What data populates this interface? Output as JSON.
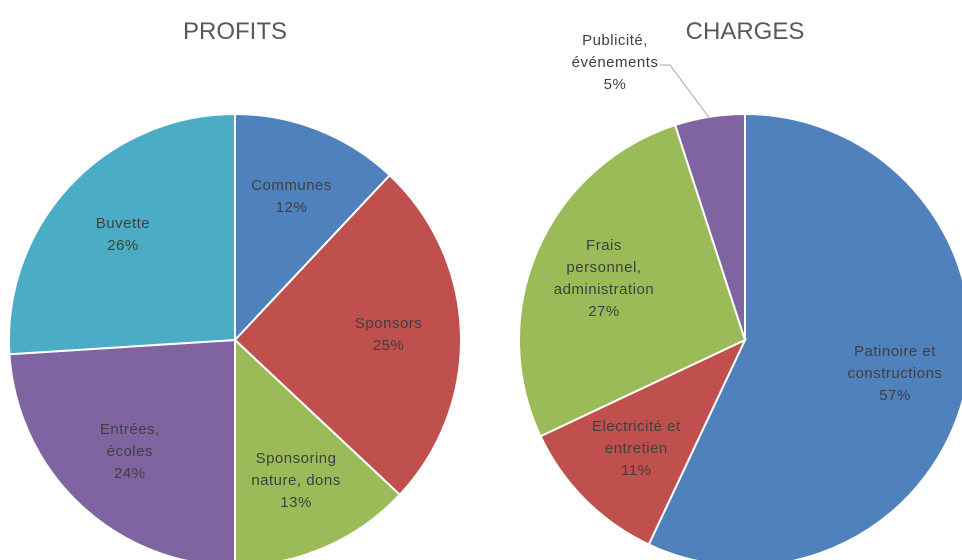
{
  "chart_data": [
    {
      "type": "pie",
      "title": "PROFITS",
      "categories": [
        "Communes",
        "Sponsors",
        "Sponsoring nature, dons",
        "Entrées, écoles",
        "Buvette"
      ],
      "values": [
        12,
        25,
        13,
        24,
        26
      ],
      "value_labels": [
        "12%",
        "25%",
        "13%",
        "24%",
        "26%"
      ],
      "colors": [
        "#4f81bd",
        "#c0504d",
        "#9bbb59",
        "#8064a2",
        "#4bacc6"
      ]
    },
    {
      "type": "pie",
      "title": "CHARGES",
      "categories": [
        "Patinoire et constructions",
        "Electricité et entretien",
        "Frais personnel, administration",
        "Publicité, événements"
      ],
      "values": [
        57,
        11,
        27,
        5
      ],
      "value_labels": [
        "57%",
        "11%",
        "27%",
        "5%"
      ],
      "colors": [
        "#4f81bd",
        "#c0504d",
        "#9bbb59",
        "#8064a2"
      ]
    }
  ]
}
